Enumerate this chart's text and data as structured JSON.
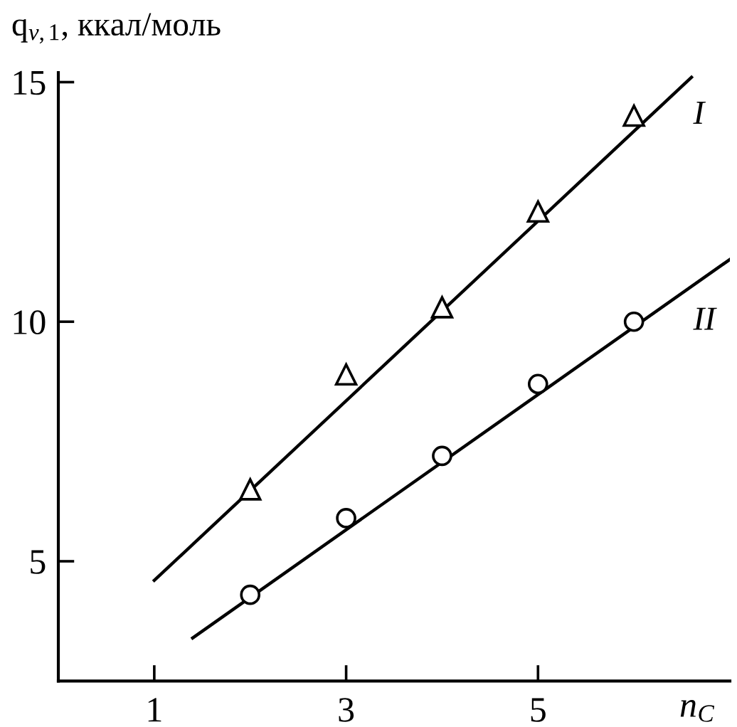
{
  "chart_data": {
    "type": "scatter",
    "xlabel": "n$_{C}$",
    "ylabel": "q$_{v,1}$, ккал/моль",
    "xlim": [
      0,
      7.0
    ],
    "ylim": [
      2.5,
      15.2
    ],
    "xticks": [
      1,
      3,
      5
    ],
    "yticks": [
      5,
      10,
      15
    ],
    "grid": false,
    "series": [
      {
        "name": "I",
        "marker": "triangle",
        "color": "#000000",
        "x": [
          2,
          3,
          4,
          5,
          6
        ],
        "values": [
          6.5,
          8.9,
          10.3,
          12.3,
          14.3
        ]
      },
      {
        "name": "II",
        "marker": "circle",
        "color": "#000000",
        "x": [
          2,
          3,
          4,
          5,
          6
        ],
        "values": [
          4.3,
          5.9,
          7.2,
          8.7,
          10.0
        ]
      },
      {
        "type": "line",
        "marker": "none",
        "line_style": "solid",
        "color": "#000000",
        "x": [
          1.0,
          6.6
        ],
        "values": [
          4.6,
          15.1
        ]
      },
      {
        "type": "line",
        "marker": "none",
        "line_style": "solid",
        "color": "#000000",
        "x": [
          1.4,
          7.0
        ],
        "values": [
          3.4,
          11.3
        ]
      }
    ]
  }
}
